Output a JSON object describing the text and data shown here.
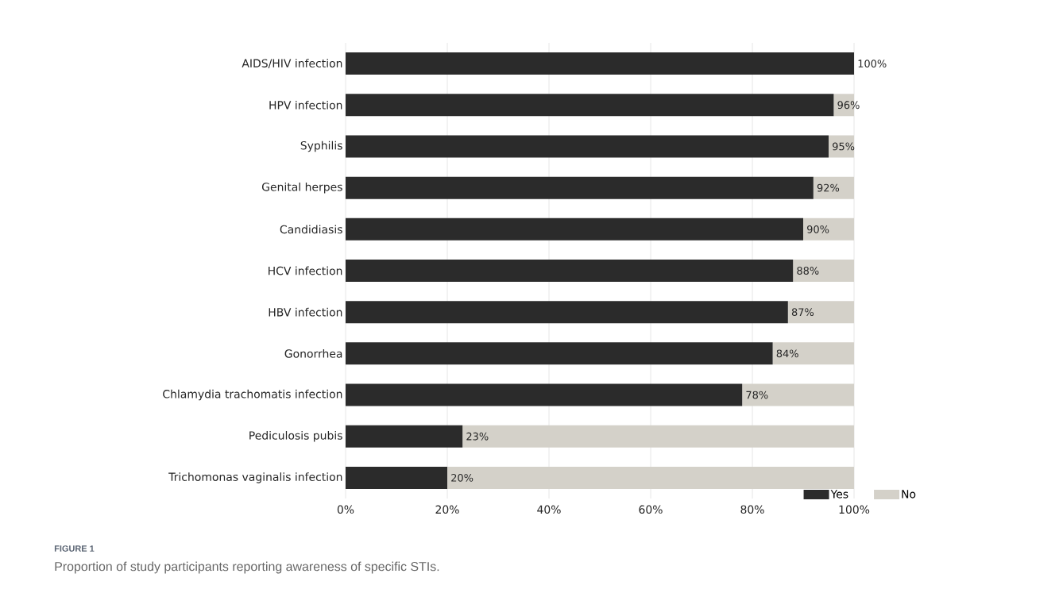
{
  "chart_data": {
    "type": "bar",
    "orientation": "horizontal",
    "stacked": true,
    "categories": [
      "AIDS/HIV infection",
      "HPV infection",
      "Syphilis",
      "Genital herpes",
      "Candidiasis",
      "HCV infection",
      "HBV infection",
      "Gonorrhea",
      "Chlamydia trachomatis infection",
      "Pediculosis pubis",
      "Trichomonas vaginalis infection"
    ],
    "series": [
      {
        "name": "Yes",
        "color": "#2b2b2b",
        "values": [
          100,
          96,
          95,
          92,
          90,
          88,
          87,
          84,
          78,
          23,
          20
        ],
        "value_labels": [
          "100%",
          "96%",
          "95%",
          "92%",
          "90%",
          "88%",
          "87%",
          "84%",
          "78%",
          "23%",
          "20%"
        ]
      },
      {
        "name": "No",
        "color": "#d4d1c9",
        "values": [
          0,
          4,
          5,
          8,
          10,
          12,
          13,
          16,
          22,
          77,
          80
        ]
      }
    ],
    "xlim": [
      0,
      100
    ],
    "xticks": [
      {
        "value": 0,
        "label": "0%"
      },
      {
        "value": 20,
        "label": "20%"
      },
      {
        "value": 40,
        "label": "40%"
      },
      {
        "value": 60,
        "label": "60%"
      },
      {
        "value": 80,
        "label": "80%"
      },
      {
        "value": 100,
        "label": "100%"
      }
    ],
    "grid": "x",
    "legend": "bottom right",
    "annotations": [
      "FIGURE 1",
      "Proportion of study participants reporting awareness of specific STIs."
    ]
  }
}
